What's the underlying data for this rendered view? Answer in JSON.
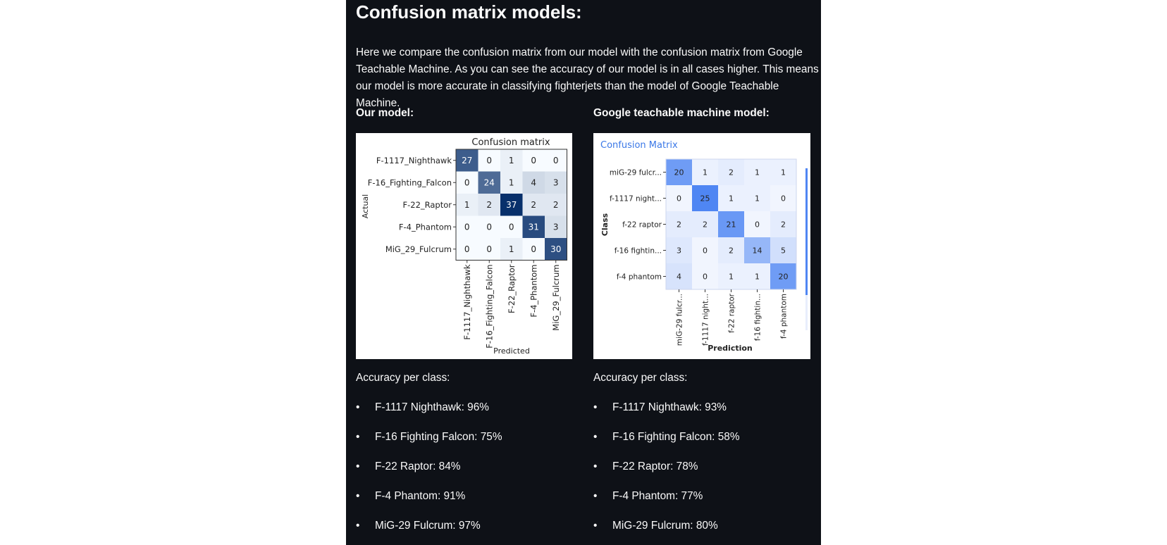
{
  "page": {
    "title": "Confusion matrix models:",
    "intro": "Here we compare the confusion matrix from our model with the confusion matrix from Google Teachable Machine. As you can see the accuracy of our model is in all cases higher. This means our model is more accurate in classifying fighterjets than the model of Google Teachable Machine."
  },
  "left": {
    "heading": "Our model:",
    "accuracy_title": "Accuracy per class:",
    "accuracy_items": [
      "F-1117 Nighthawk: 96%",
      "F-16 Fighting Falcon: 75%",
      "F-22 Raptor: 84%",
      "F-4 Phantom: 91%",
      "MiG-29 Fulcrum: 97%"
    ]
  },
  "right": {
    "heading": "Google teachable machine model:",
    "accuracy_title": "Accuracy per class:",
    "accuracy_items": [
      "F-1117 Nighthawk: 93%",
      "F-16 Fighting Falcon: 58%",
      "F-22 Raptor: 78%",
      "F-4 Phantom: 77%",
      "MiG-29 Fulcrum: 80%"
    ]
  },
  "bullet_char": "•",
  "chart_data": [
    {
      "type": "heatmap",
      "title": "Confusion matrix",
      "xlabel": "Predicted",
      "ylabel": "Actual",
      "rows": [
        "F-1117_Nighthawk",
        "F-16_Fighting_Falcon",
        "F-22_Raptor",
        "F-4_Phantom",
        "MiG_29_Fulcrum"
      ],
      "cols": [
        "F-1117_Nighthawk",
        "F-16_Fighting_Falcon",
        "F-22_Raptor",
        "F-4_Phantom",
        "MiG_29_Fulcrum"
      ],
      "values": [
        [
          27,
          0,
          1,
          0,
          0
        ],
        [
          0,
          24,
          1,
          4,
          3
        ],
        [
          1,
          2,
          37,
          2,
          2
        ],
        [
          0,
          0,
          0,
          31,
          3
        ],
        [
          0,
          0,
          1,
          0,
          30
        ]
      ],
      "colormap": "Blues",
      "colors": {
        "low": "#f7fbff",
        "high": "#08306b"
      }
    },
    {
      "type": "heatmap",
      "title": "Confusion Matrix",
      "xlabel": "Prediction",
      "ylabel": "Class",
      "rows": [
        "miG-29 fulcr...",
        "f-1117 night...",
        "f-22 raptor",
        "f-16 fightin...",
        "f-4 phantom"
      ],
      "cols": [
        "miG-29 fulcr...",
        "f-1117 night...",
        "f-22 raptor",
        "f-16 fightin...",
        "f-4 phantom"
      ],
      "values": [
        [
          20,
          1,
          2,
          1,
          1
        ],
        [
          0,
          25,
          1,
          1,
          0
        ],
        [
          2,
          2,
          21,
          0,
          2
        ],
        [
          3,
          0,
          2,
          14,
          5
        ],
        [
          4,
          0,
          1,
          1,
          20
        ]
      ],
      "colors": {
        "low": "#f1f5fe",
        "high": "#4f86f3",
        "title": "#3b78e7"
      }
    }
  ]
}
